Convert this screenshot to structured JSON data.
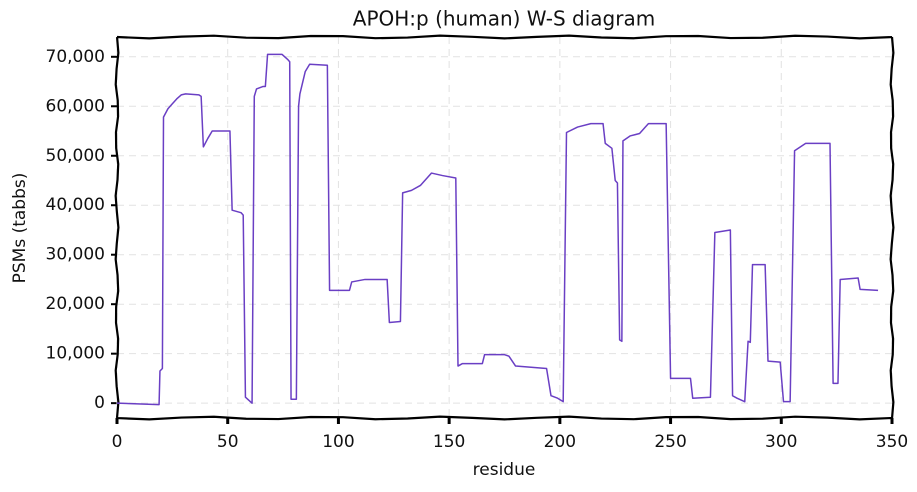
{
  "chart_data": {
    "type": "line",
    "title": "APOH:p (human) W-S diagram",
    "xlabel": "residue",
    "ylabel": "PSMs (tabbs)",
    "x": [
      0,
      19,
      19.4,
      20.5,
      21,
      23,
      25,
      27,
      29,
      31,
      37,
      38,
      39,
      41,
      43,
      51,
      52,
      56,
      57,
      58,
      61,
      62,
      63,
      66,
      67,
      68,
      74.5,
      77,
      78,
      78.6,
      81,
      82,
      82.6,
      85,
      87,
      95,
      96,
      105,
      106,
      112,
      122,
      123,
      128,
      129,
      133,
      137,
      142,
      147,
      153,
      154,
      156,
      165,
      166,
      175,
      177,
      180,
      194,
      196,
      199,
      201.5,
      203,
      208,
      214,
      219.5,
      220.5,
      223.5,
      225,
      226,
      227,
      228,
      228.5,
      231.7,
      236,
      240,
      248,
      250,
      259,
      260,
      268,
      270,
      277,
      278,
      280,
      283.5,
      285,
      286,
      287,
      292.7,
      294,
      299.5,
      301,
      304,
      306,
      311,
      322,
      323.4,
      325.6,
      326.6,
      334.7,
      335.6,
      343.7
    ],
    "series": [
      {
        "name": "APOH",
        "color": "#6a3fc4",
        "values": [
          0,
          -300,
          6500,
          7000,
          57800,
          59500,
          60500,
          61500,
          62300,
          62500,
          62300,
          62000,
          51800,
          53500,
          55000,
          55000,
          39000,
          38500,
          38000,
          1200,
          0,
          62000,
          63500,
          64000,
          64000,
          70500,
          70500,
          69500,
          69000,
          800,
          800,
          60000,
          62500,
          67000,
          68500,
          68300,
          22800,
          22800,
          24500,
          25000,
          25000,
          16300,
          16500,
          42500,
          43000,
          44000,
          46500,
          46000,
          45500,
          7500,
          8000,
          8000,
          9800,
          9800,
          9500,
          7500,
          7000,
          1500,
          1000,
          300,
          54700,
          55800,
          56500,
          56500,
          52500,
          51500,
          45000,
          44500,
          12800,
          12500,
          53000,
          54000,
          54500,
          56500,
          56500,
          5000,
          5000,
          1000,
          1200,
          34500,
          35000,
          1500,
          1000,
          300,
          12500,
          12300,
          28000,
          28000,
          8500,
          8300,
          300,
          300,
          51000,
          52500,
          52500,
          4000,
          4000,
          25000,
          25300,
          23000,
          22800
        ]
      }
    ],
    "xlim": [
      0,
      350
    ],
    "xticks": [
      0,
      50,
      100,
      150,
      200,
      250,
      300,
      350
    ],
    "ylim": [
      -3000,
      74000
    ],
    "yticks": [
      0,
      {
        "value": 10000,
        "label": "10,000"
      },
      {
        "value": 20000,
        "label": "20,000"
      },
      {
        "value": 30000,
        "label": "30,000"
      },
      {
        "value": 40000,
        "label": "40,000"
      },
      {
        "value": 50000,
        "label": "50,000"
      },
      {
        "value": 60000,
        "label": "60,000"
      },
      {
        "value": 70000,
        "label": "70,000"
      }
    ],
    "grid": true
  }
}
